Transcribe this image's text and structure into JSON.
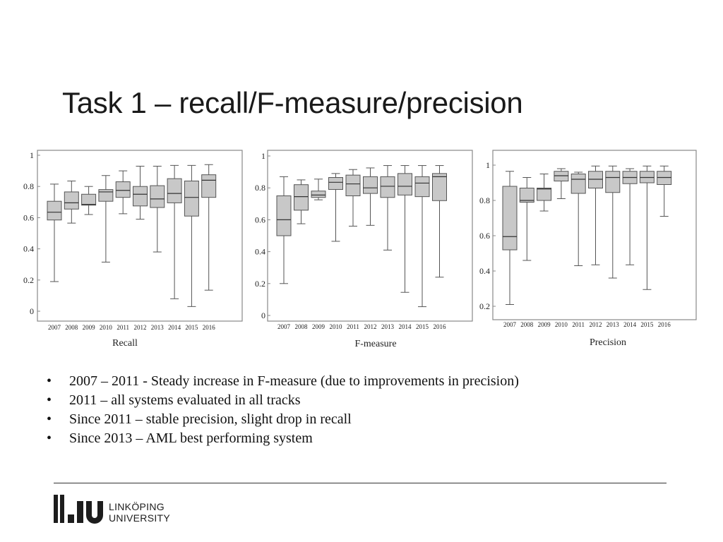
{
  "slide": {
    "title": "Task 1 – recall/F-measure/precision",
    "bullets": [
      "2007 – 2011 - Steady increase in F-measure (due to improvements in precision)",
      "2011 – all systems evaluated in all tracks",
      "Since 2011 – stable precision, slight drop in recall",
      "Since 2013 – AML best performing system"
    ],
    "bullet_char": "•"
  },
  "logo": {
    "line1": "LINKÖPING",
    "line2": "UNIVERSITY"
  },
  "colors": {
    "box_fill": "#c8c8c8",
    "stroke": "#555555",
    "text": "#111111"
  },
  "chart_data": [
    {
      "type": "boxplot",
      "caption": "Recall",
      "categories": [
        "2007",
        "2008",
        "2009",
        "2010",
        "2011",
        "2012",
        "2013",
        "2014",
        "2015",
        "2016"
      ],
      "ylim": [
        0,
        1
      ],
      "yticks": [
        "0",
        "0.2",
        "0.4",
        "0.6",
        "0.8",
        "1"
      ],
      "yticks_values": [
        0,
        0.2,
        0.4,
        0.6,
        0.8,
        1
      ],
      "boxes": [
        {
          "min": 0.19,
          "q1": 0.585,
          "median": 0.635,
          "q3": 0.705,
          "max": 0.815
        },
        {
          "min": 0.565,
          "q1": 0.655,
          "median": 0.695,
          "q3": 0.765,
          "max": 0.835
        },
        {
          "min": 0.62,
          "q1": 0.68,
          "median": 0.685,
          "q3": 0.75,
          "max": 0.8
        },
        {
          "min": 0.315,
          "q1": 0.705,
          "median": 0.765,
          "q3": 0.78,
          "max": 0.87
        },
        {
          "min": 0.625,
          "q1": 0.73,
          "median": 0.775,
          "q3": 0.83,
          "max": 0.9
        },
        {
          "min": 0.59,
          "q1": 0.675,
          "median": 0.75,
          "q3": 0.8,
          "max": 0.93
        },
        {
          "min": 0.38,
          "q1": 0.665,
          "median": 0.72,
          "q3": 0.805,
          "max": 0.93
        },
        {
          "min": 0.08,
          "q1": 0.695,
          "median": 0.755,
          "q3": 0.85,
          "max": 0.935
        },
        {
          "min": 0.03,
          "q1": 0.61,
          "median": 0.73,
          "q3": 0.835,
          "max": 0.935
        },
        {
          "min": 0.135,
          "q1": 0.73,
          "median": 0.84,
          "q3": 0.875,
          "max": 0.94
        }
      ]
    },
    {
      "type": "boxplot",
      "caption": "F-measure",
      "categories": [
        "2007",
        "2008",
        "2009",
        "2010",
        "2011",
        "2012",
        "2013",
        "2014",
        "2015",
        "2016"
      ],
      "ylim": [
        0,
        1
      ],
      "yticks": [
        "0",
        "0.2",
        "0.4",
        "0.6",
        "0.8",
        "1"
      ],
      "yticks_values": [
        0,
        0.2,
        0.4,
        0.6,
        0.8,
        1
      ],
      "boxes": [
        {
          "min": 0.2,
          "q1": 0.5,
          "median": 0.6,
          "q3": 0.75,
          "max": 0.87
        },
        {
          "min": 0.575,
          "q1": 0.66,
          "median": 0.745,
          "q3": 0.82,
          "max": 0.85
        },
        {
          "min": 0.725,
          "q1": 0.74,
          "median": 0.755,
          "q3": 0.78,
          "max": 0.855
        },
        {
          "min": 0.465,
          "q1": 0.79,
          "median": 0.835,
          "q3": 0.865,
          "max": 0.89
        },
        {
          "min": 0.56,
          "q1": 0.75,
          "median": 0.825,
          "q3": 0.88,
          "max": 0.915
        },
        {
          "min": 0.565,
          "q1": 0.765,
          "median": 0.8,
          "q3": 0.87,
          "max": 0.925
        },
        {
          "min": 0.41,
          "q1": 0.74,
          "median": 0.81,
          "q3": 0.87,
          "max": 0.94
        },
        {
          "min": 0.145,
          "q1": 0.755,
          "median": 0.81,
          "q3": 0.89,
          "max": 0.94
        },
        {
          "min": 0.055,
          "q1": 0.745,
          "median": 0.83,
          "q3": 0.87,
          "max": 0.94
        },
        {
          "min": 0.24,
          "q1": 0.72,
          "median": 0.87,
          "q3": 0.89,
          "max": 0.94
        }
      ]
    },
    {
      "type": "boxplot",
      "caption": "Precision",
      "categories": [
        "2007",
        "2008",
        "2009",
        "2010",
        "2011",
        "2012",
        "2013",
        "2014",
        "2015",
        "2016"
      ],
      "ylim": [
        0.15,
        1.03
      ],
      "yticks": [
        "0.2",
        "0.4",
        "0.6",
        "0.8",
        "1"
      ],
      "yticks_values": [
        0.2,
        0.4,
        0.6,
        0.8,
        1
      ],
      "boxes": [
        {
          "min": 0.21,
          "q1": 0.52,
          "median": 0.595,
          "q3": 0.88,
          "max": 0.965
        },
        {
          "min": 0.46,
          "q1": 0.79,
          "median": 0.8,
          "q3": 0.87,
          "max": 0.93
        },
        {
          "min": 0.74,
          "q1": 0.8,
          "median": 0.865,
          "q3": 0.87,
          "max": 0.95
        },
        {
          "min": 0.81,
          "q1": 0.91,
          "median": 0.94,
          "q3": 0.965,
          "max": 0.98
        },
        {
          "min": 0.43,
          "q1": 0.84,
          "median": 0.92,
          "q3": 0.95,
          "max": 0.96
        },
        {
          "min": 0.435,
          "q1": 0.87,
          "median": 0.92,
          "q3": 0.965,
          "max": 0.995
        },
        {
          "min": 0.36,
          "q1": 0.845,
          "median": 0.93,
          "q3": 0.965,
          "max": 0.995
        },
        {
          "min": 0.435,
          "q1": 0.895,
          "median": 0.93,
          "q3": 0.965,
          "max": 0.98
        },
        {
          "min": 0.295,
          "q1": 0.9,
          "median": 0.93,
          "q3": 0.965,
          "max": 0.995
        },
        {
          "min": 0.71,
          "q1": 0.89,
          "median": 0.93,
          "q3": 0.965,
          "max": 0.995
        }
      ]
    }
  ]
}
